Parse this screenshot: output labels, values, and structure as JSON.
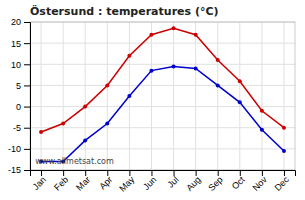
{
  "chart_data": {
    "type": "line",
    "title": "Östersund : temperatures (°C)",
    "categories": [
      "Jan",
      "Feb",
      "Mar",
      "Apr",
      "May",
      "Jun",
      "Jul",
      "Aug",
      "Sep",
      "Oct",
      "Nov",
      "Dec"
    ],
    "series": [
      {
        "color": "#cc0000",
        "marker": "circle",
        "line_style": "solid",
        "values": [
          -6,
          -4,
          0,
          5,
          12,
          17,
          18.5,
          17,
          11,
          6,
          -1,
          -5
        ]
      },
      {
        "color": "#0000cc",
        "marker": "circle",
        "line_style": "solid",
        "values": [
          -13,
          -13,
          -8,
          -4,
          2.5,
          8.5,
          9.5,
          9,
          5,
          1,
          -5.5,
          -10.5
        ]
      }
    ],
    "ylim": [
      -15,
      20
    ],
    "yticks": [
      -15,
      -10,
      -5,
      0,
      5,
      10,
      15,
      20
    ],
    "grid": true,
    "annotations": [
      "www.allmetsat.com"
    ]
  }
}
